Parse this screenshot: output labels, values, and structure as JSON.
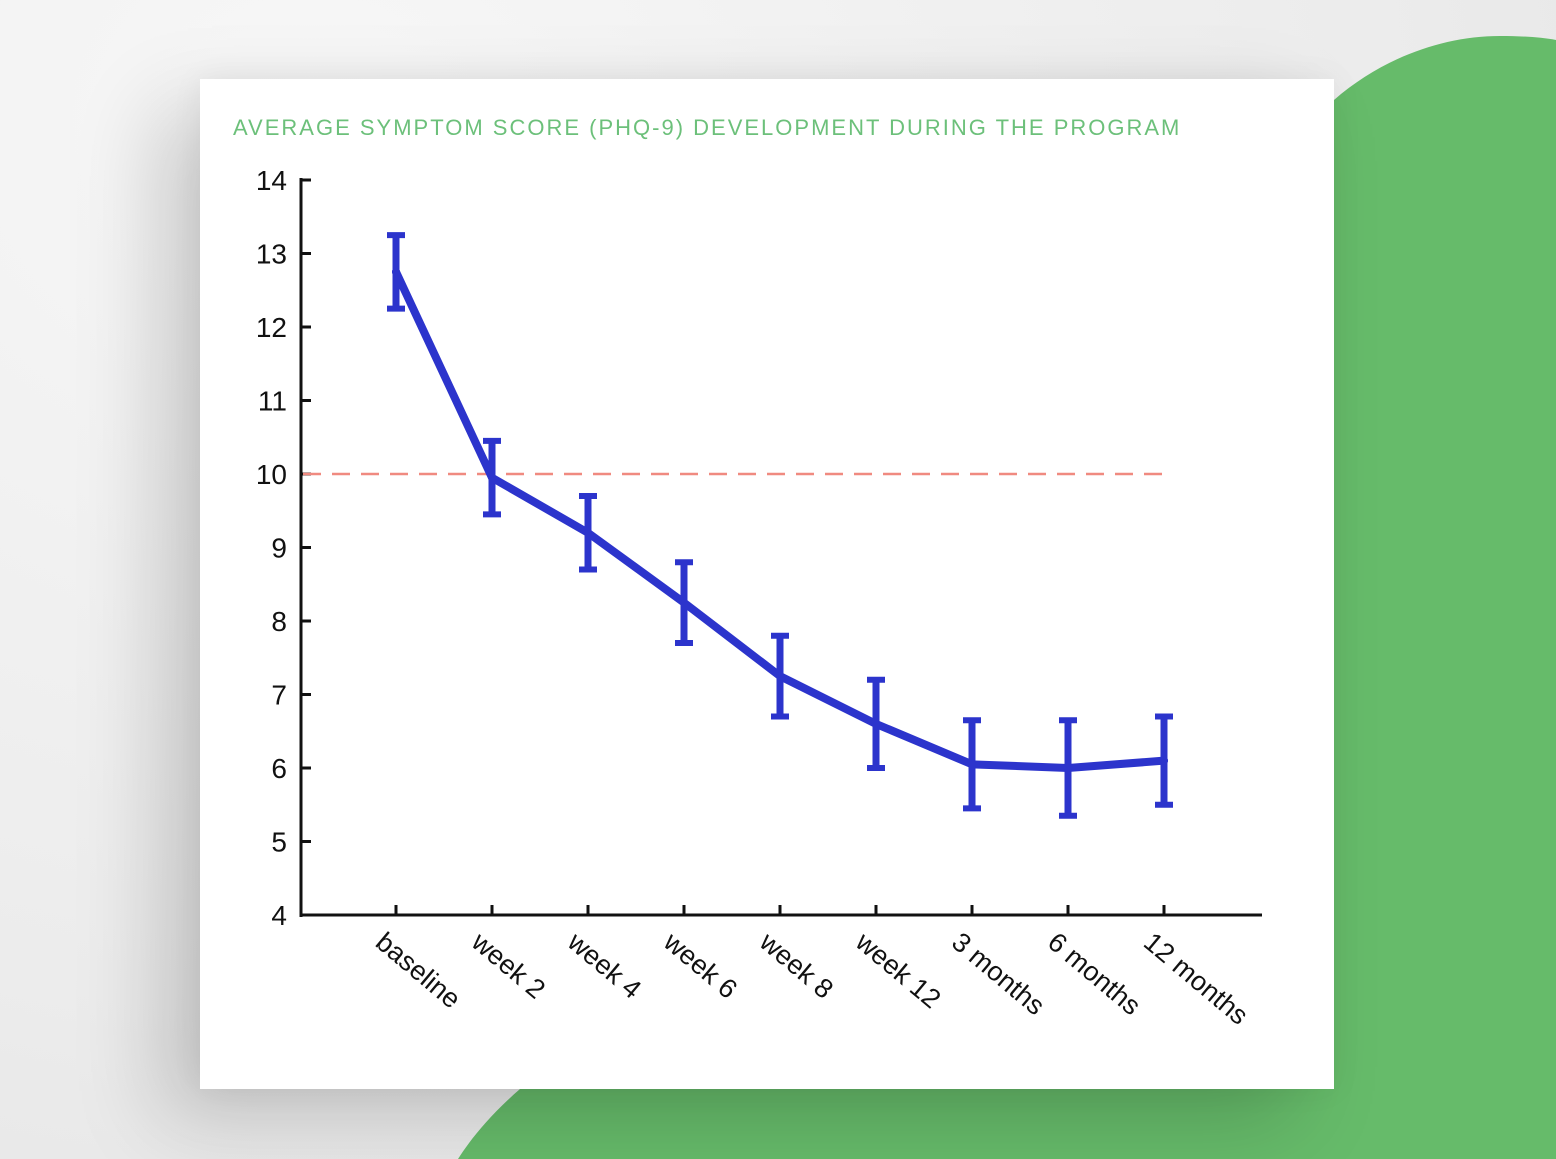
{
  "colors": {
    "background": "#f0f0f0",
    "accent_green": "#66bb6a",
    "title_green": "#6cc07a",
    "line_blue": "#2c34cc",
    "threshold_red": "#f08a80",
    "axis": "#111111"
  },
  "chart_data": {
    "type": "line",
    "title": "AVERAGE SYMPTOM SCORE (PHQ-9) DEVELOPMENT DURING THE PROGRAM",
    "xlabel": "",
    "ylabel": "",
    "categories": [
      "baseline",
      "week 2",
      "week 4",
      "week 6",
      "week 8",
      "week 12",
      "3 months",
      "6 months",
      "12 months"
    ],
    "series": [
      {
        "values": [
          12.75,
          9.95,
          9.2,
          8.25,
          7.25,
          6.6,
          6.05,
          6.0,
          6.1
        ],
        "error": [
          0.5,
          0.5,
          0.5,
          0.55,
          0.55,
          0.6,
          0.6,
          0.65,
          0.6
        ]
      }
    ],
    "threshold": 10,
    "ylim": [
      4,
      14
    ],
    "yticks": [
      4,
      5,
      6,
      7,
      8,
      9,
      10,
      11,
      12,
      13,
      14
    ],
    "grid": false,
    "legend": "none"
  }
}
